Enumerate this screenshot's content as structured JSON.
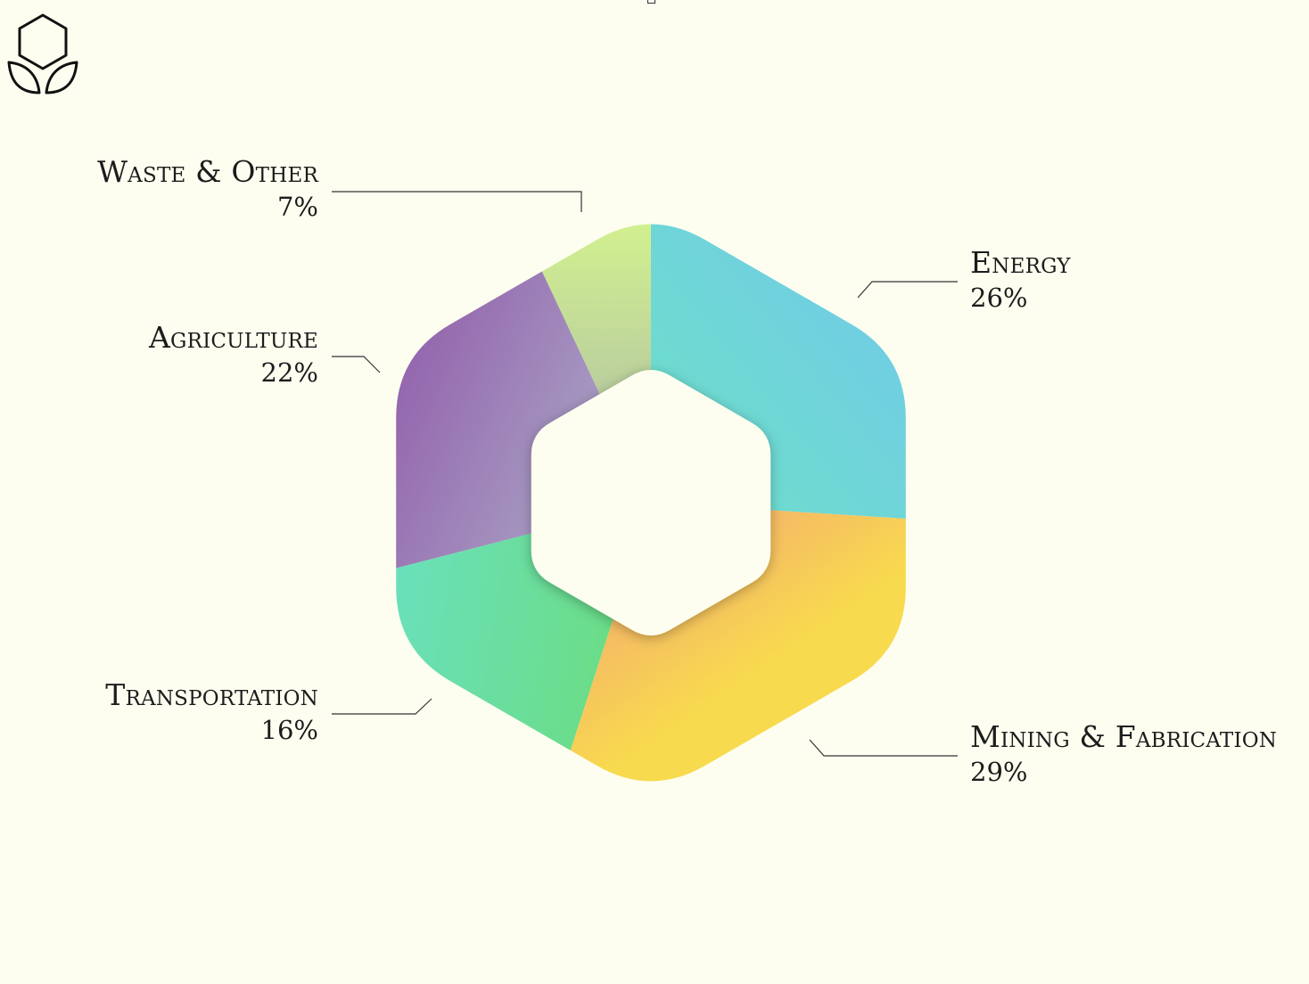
{
  "logo": {
    "icon": "hexagon-sprout-icon"
  },
  "colors": {
    "background": "#fefef0",
    "leader_line": "#333333"
  },
  "chart_data": {
    "type": "pie",
    "shape": "hexagonal donut",
    "unit": "%",
    "slices": [
      {
        "name": "Energy",
        "value": 26,
        "label": "26%",
        "colors": [
          "#72c6ee",
          "#6de2c6"
        ]
      },
      {
        "name": "Mining & Fabrication",
        "value": 29,
        "label": "29%",
        "colors": [
          "#f29e78",
          "#f8da4e"
        ]
      },
      {
        "name": "Transportation",
        "value": 16,
        "label": "16%",
        "colors": [
          "#6ae0bd",
          "#6bdc7c"
        ]
      },
      {
        "name": "Agriculture",
        "value": 22,
        "label": "22%",
        "colors": [
          "#8f56a8",
          "#aaa6c6"
        ]
      },
      {
        "name": "Waste & Other",
        "value": 7,
        "label": "7%",
        "colors": [
          "#d6f78c",
          "#aab8a8"
        ]
      }
    ]
  }
}
